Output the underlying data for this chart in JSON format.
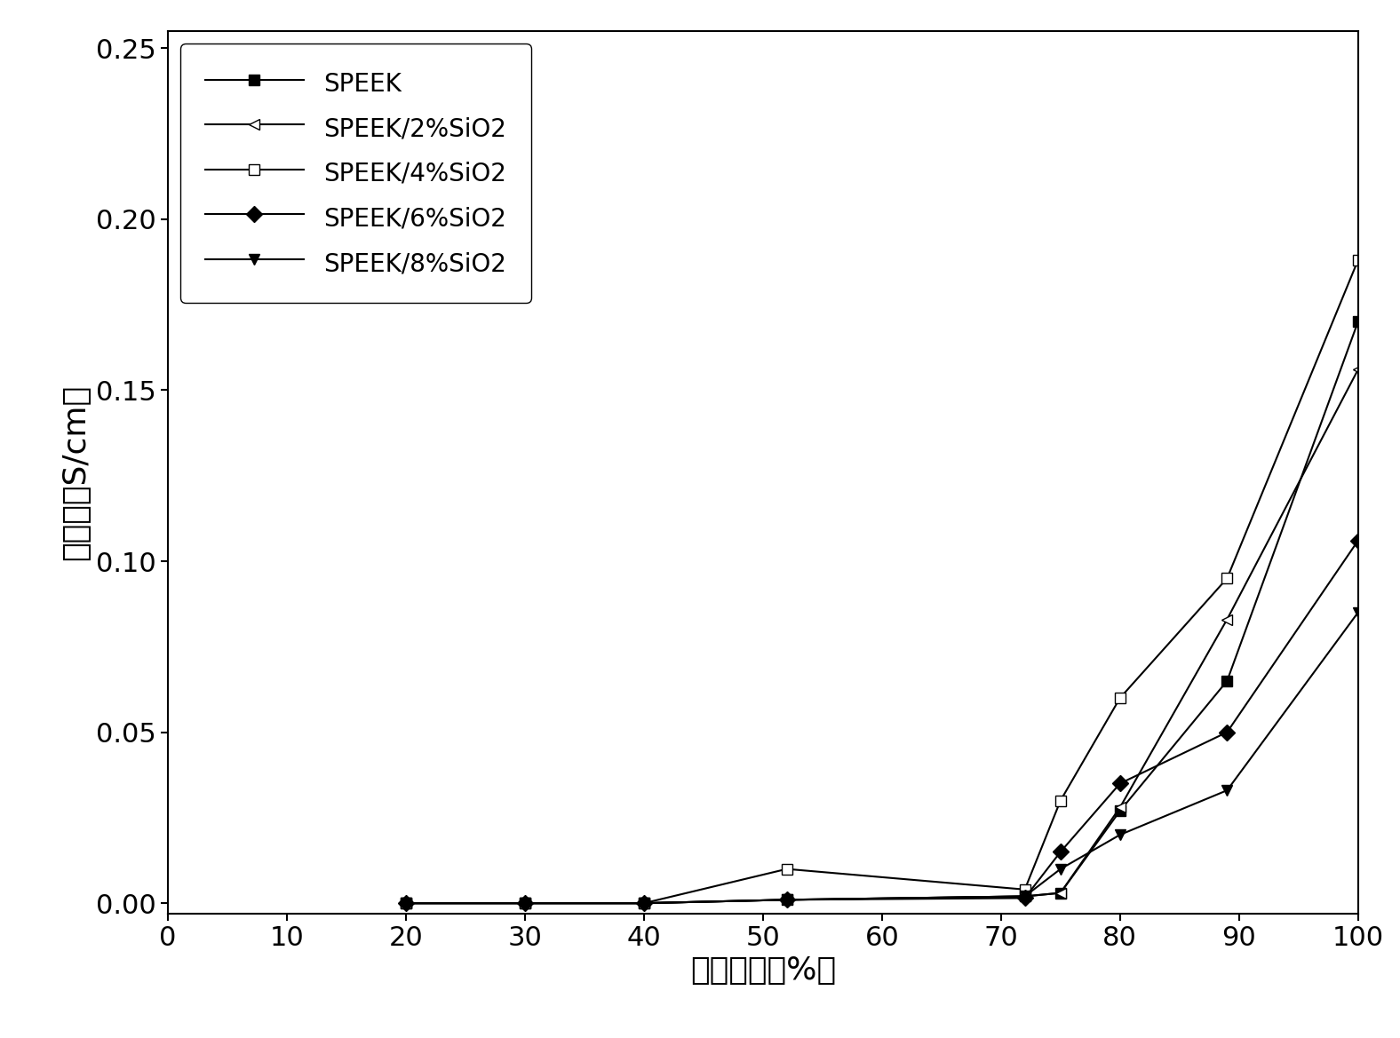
{
  "series": [
    {
      "label": "SPEEK",
      "x": [
        20,
        30,
        40,
        52,
        72,
        75,
        80,
        89,
        100
      ],
      "y": [
        0.0,
        0.0,
        0.0,
        0.001,
        0.002,
        0.003,
        0.027,
        0.065,
        0.17
      ],
      "marker": "s",
      "marker_fill": "black",
      "marker_size": 9,
      "linestyle": "-",
      "color": "black"
    },
    {
      "label": "SPEEK/2%SiO2",
      "x": [
        20,
        30,
        40,
        52,
        72,
        75,
        80,
        89,
        100
      ],
      "y": [
        0.0,
        0.0,
        0.0,
        0.001,
        0.002,
        0.003,
        0.028,
        0.083,
        0.156
      ],
      "marker": "<",
      "marker_fill": "white",
      "marker_size": 9,
      "linestyle": "-",
      "color": "black"
    },
    {
      "label": "SPEEK/4%SiO2",
      "x": [
        20,
        30,
        40,
        52,
        72,
        75,
        80,
        89,
        100
      ],
      "y": [
        0.0,
        0.0,
        0.0,
        0.01,
        0.004,
        0.03,
        0.06,
        0.095,
        0.188
      ],
      "marker": "s",
      "marker_fill": "white",
      "marker_size": 9,
      "linestyle": "-",
      "color": "black"
    },
    {
      "label": "SPEEK/6%SiO2",
      "x": [
        20,
        30,
        40,
        52,
        72,
        75,
        80,
        89,
        100
      ],
      "y": [
        0.0,
        0.0,
        0.0,
        0.001,
        0.0015,
        0.015,
        0.035,
        0.05,
        0.106
      ],
      "marker": "D",
      "marker_fill": "black",
      "marker_size": 9,
      "linestyle": "-",
      "color": "black"
    },
    {
      "label": "SPEEK/8%SiO2",
      "x": [
        20,
        30,
        40,
        52,
        72,
        75,
        80,
        89,
        100
      ],
      "y": [
        0.0,
        0.0,
        0.0,
        0.001,
        0.002,
        0.01,
        0.02,
        0.033,
        0.085
      ],
      "marker": "v",
      "marker_fill": "black",
      "marker_size": 9,
      "linestyle": "-",
      "color": "black"
    }
  ],
  "xlabel": "相对湿度（%）",
  "ylabel": "电导率（S/cm）",
  "xlim": [
    0,
    100
  ],
  "ylim": [
    -0.003,
    0.255
  ],
  "xticks": [
    0,
    10,
    20,
    30,
    40,
    50,
    60,
    70,
    80,
    90,
    100
  ],
  "yticks": [
    0.0,
    0.05,
    0.1,
    0.15,
    0.2,
    0.25
  ],
  "background_color": "#ffffff",
  "legend_loc": "upper left",
  "font_size_label": 26,
  "font_size_tick": 22,
  "font_size_legend": 20
}
